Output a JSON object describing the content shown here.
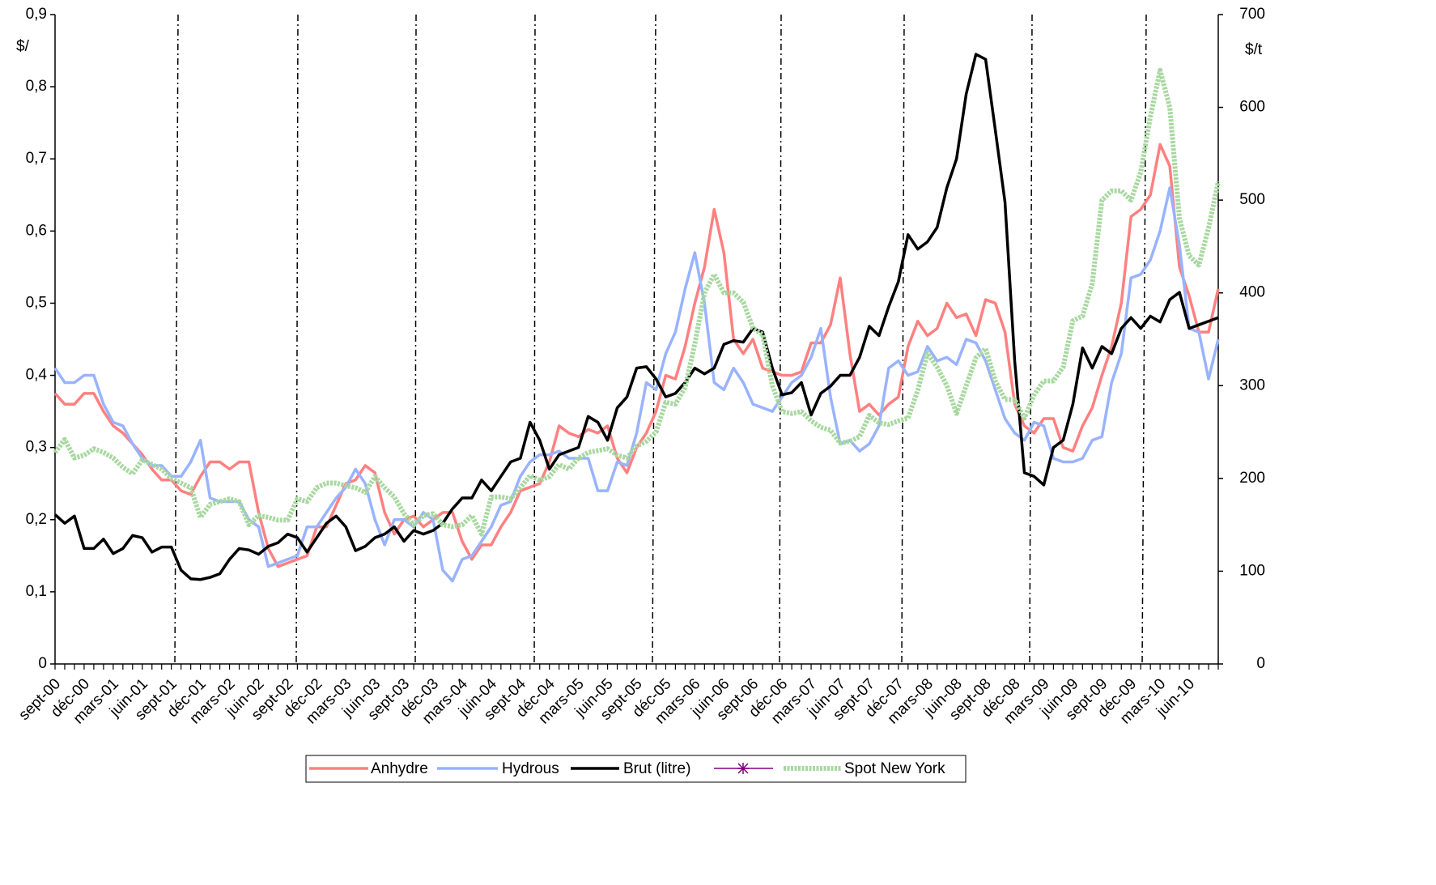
{
  "chart_data": {
    "type": "line",
    "y_label": "$/",
    "y2_label": "$/t",
    "categories": [
      "sept-00",
      null,
      null,
      "déc-00",
      null,
      null,
      "mars-01",
      null,
      null,
      "juin-01",
      null,
      null,
      "sept-01",
      null,
      null,
      "déc-01",
      null,
      null,
      "mars-02",
      null,
      null,
      "juin-02",
      null,
      null,
      "sept-02",
      null,
      null,
      "déc-02",
      null,
      null,
      "mars-03",
      null,
      null,
      "juin-03",
      null,
      null,
      "sept-03",
      null,
      null,
      "déc-03",
      null,
      null,
      "mars-04",
      null,
      null,
      "juin-04",
      null,
      null,
      "sept-04",
      null,
      null,
      "déc-04",
      null,
      null,
      "mars-05",
      null,
      null,
      "juin-05",
      null,
      null,
      "sept-05",
      null,
      null,
      "déc-05",
      null,
      null,
      "mars-06",
      null,
      null,
      "juin-06",
      null,
      null,
      "sept-06",
      null,
      null,
      "déc-06",
      null,
      null,
      "mars-07",
      null,
      null,
      "juin-07",
      null,
      null,
      "sept-07",
      null,
      null,
      "déc-07",
      null,
      null,
      "mars-08",
      null,
      null,
      "juin-08",
      null,
      null,
      "sept-08",
      null,
      null,
      "déc-08",
      null,
      null,
      "mars-09",
      null,
      null,
      "juin-09",
      null,
      null,
      "sept-09",
      null,
      null,
      "déc-09",
      null,
      null,
      "mars-10",
      null,
      null,
      "juin-10",
      null,
      null,
      null
    ],
    "ylim": [
      0,
      0.9
    ],
    "yticks": [
      0,
      {
        "value": 0.1,
        "label": "0,1"
      },
      {
        "value": 0.2,
        "label": "0,2"
      },
      {
        "value": 0.3,
        "label": "0,3"
      },
      {
        "value": 0.4,
        "label": "0,4"
      },
      {
        "value": 0.5,
        "label": "0,5"
      },
      {
        "value": 0.6,
        "label": "0,6"
      },
      {
        "value": 0.7,
        "label": "0,7"
      },
      {
        "value": 0.8,
        "label": "0,8"
      },
      {
        "value": 0.9,
        "label": "0,9"
      }
    ],
    "y2lim": [
      0,
      700
    ],
    "y2ticks": [
      0,
      100,
      200,
      300,
      400,
      500,
      600,
      700
    ],
    "series": [
      {
        "name": "Anhydre",
        "color": "#ff8080",
        "values": [
          0.375,
          0.36,
          0.36,
          0.375,
          0.375,
          0.35,
          0.33,
          0.32,
          0.305,
          0.29,
          0.27,
          0.255,
          0.255,
          0.24,
          0.235,
          0.26,
          0.28,
          0.28,
          0.27,
          0.28,
          0.28,
          0.21,
          0.16,
          0.135,
          0.14,
          0.145,
          0.15,
          0.19,
          0.19,
          0.22,
          0.25,
          0.255,
          0.275,
          0.265,
          0.21,
          0.18,
          0.2,
          0.205,
          0.19,
          0.2,
          0.21,
          0.21,
          0.17,
          0.145,
          0.165,
          0.165,
          0.19,
          0.21,
          0.24,
          0.245,
          0.25,
          0.28,
          0.33,
          0.32,
          0.315,
          0.325,
          0.32,
          0.33,
          0.285,
          0.265,
          0.3,
          0.32,
          0.35,
          0.4,
          0.395,
          0.44,
          0.5,
          0.55,
          0.63,
          0.57,
          0.45,
          0.43,
          0.45,
          0.41,
          0.405,
          0.4,
          0.4,
          0.405,
          0.445,
          0.445,
          0.47,
          0.535,
          0.43,
          0.35,
          0.36,
          0.345,
          0.36,
          0.37,
          0.44,
          0.475,
          0.455,
          0.465,
          0.5,
          0.48,
          0.485,
          0.455,
          0.505,
          0.5,
          0.46,
          0.36,
          0.33,
          0.32,
          0.34,
          0.34,
          0.3,
          0.295,
          0.33,
          0.355,
          0.4,
          0.44,
          0.5,
          0.62,
          0.63,
          0.65,
          0.72,
          0.69,
          0.55,
          0.51,
          0.46,
          0.46,
          0.52
        ]
      },
      {
        "name": "Hydrous",
        "color": "#99b3ff",
        "values": [
          0.41,
          0.39,
          0.39,
          0.4,
          0.4,
          0.36,
          0.335,
          0.33,
          0.305,
          0.285,
          0.275,
          0.275,
          0.26,
          0.26,
          0.28,
          0.31,
          0.23,
          0.225,
          0.225,
          0.225,
          0.2,
          0.19,
          0.135,
          0.14,
          0.145,
          0.15,
          0.19,
          0.19,
          0.21,
          0.23,
          0.245,
          0.27,
          0.25,
          0.2,
          0.165,
          0.2,
          0.2,
          0.19,
          0.21,
          0.2,
          0.13,
          0.115,
          0.145,
          0.15,
          0.17,
          0.19,
          0.22,
          0.225,
          0.26,
          0.28,
          0.29,
          0.29,
          0.295,
          0.285,
          0.285,
          0.285,
          0.24,
          0.24,
          0.28,
          0.275,
          0.32,
          0.39,
          0.38,
          0.43,
          0.46,
          0.52,
          0.57,
          0.5,
          0.39,
          0.38,
          0.41,
          0.39,
          0.36,
          0.355,
          0.35,
          0.37,
          0.39,
          0.4,
          0.425,
          0.465,
          0.37,
          0.305,
          0.31,
          0.295,
          0.305,
          0.33,
          0.41,
          0.42,
          0.4,
          0.405,
          0.44,
          0.42,
          0.425,
          0.415,
          0.45,
          0.445,
          0.42,
          0.38,
          0.34,
          0.32,
          0.31,
          0.335,
          0.33,
          0.285,
          0.28,
          0.28,
          0.285,
          0.31,
          0.315,
          0.39,
          0.43,
          0.535,
          0.54,
          0.56,
          0.6,
          0.66,
          0.58,
          0.465,
          0.46,
          0.395,
          0.45
        ]
      },
      {
        "name": "Brut (litre)",
        "color": "#000000",
        "values": [
          0.207,
          0.195,
          0.205,
          0.16,
          0.16,
          0.173,
          0.153,
          0.16,
          0.178,
          0.175,
          0.155,
          0.162,
          0.162,
          0.13,
          0.118,
          0.117,
          0.12,
          0.125,
          0.145,
          0.16,
          0.158,
          0.152,
          0.163,
          0.168,
          0.18,
          0.175,
          0.155,
          0.175,
          0.195,
          0.205,
          0.19,
          0.157,
          0.163,
          0.175,
          0.18,
          0.19,
          0.17,
          0.185,
          0.18,
          0.185,
          0.195,
          0.215,
          0.23,
          0.23,
          0.255,
          0.24,
          0.26,
          0.28,
          0.285,
          0.335,
          0.31,
          0.27,
          0.29,
          0.295,
          0.3,
          0.343,
          0.335,
          0.31,
          0.355,
          0.37,
          0.41,
          0.412,
          0.395,
          0.37,
          0.375,
          0.39,
          0.41,
          0.402,
          0.41,
          0.443,
          0.448,
          0.446,
          0.465,
          0.46,
          0.41,
          0.373,
          0.376,
          0.39,
          0.345,
          0.375,
          0.385,
          0.4,
          0.4,
          0.425,
          0.468,
          0.455,
          0.495,
          0.53,
          0.595,
          0.575,
          0.585,
          0.605,
          0.66,
          0.7,
          0.79,
          0.845,
          0.838,
          0.74,
          0.64,
          0.42,
          0.265,
          0.26,
          0.248,
          0.3,
          0.31,
          0.36,
          0.438,
          0.41,
          0.44,
          0.43,
          0.465,
          0.48,
          0.465,
          0.482,
          0.474,
          0.505,
          0.515,
          0.465,
          0.47,
          0.475,
          0.48
        ]
      },
      {
        "name": "Spot New York",
        "color": "#a8d8a0",
        "axis": "y2",
        "values": [
          228,
          242,
          222,
          225,
          232,
          228,
          222,
          212,
          205,
          220,
          215,
          210,
          200,
          195,
          190,
          158,
          172,
          175,
          178,
          175,
          150,
          160,
          158,
          155,
          155,
          178,
          175,
          190,
          195,
          195,
          192,
          190,
          185,
          202,
          190,
          180,
          162,
          150,
          160,
          162,
          150,
          148,
          150,
          160,
          140,
          180,
          180,
          178,
          190,
          203,
          198,
          202,
          215,
          210,
          222,
          228,
          230,
          232,
          225,
          222,
          235,
          240,
          250,
          282,
          280,
          298,
          345,
          400,
          420,
          400,
          400,
          390,
          362,
          355,
          300,
          272,
          270,
          272,
          262,
          255,
          252,
          238,
          240,
          245,
          268,
          260,
          258,
          262,
          265,
          295,
          335,
          320,
          300,
          270,
          300,
          330,
          340,
          305,
          285,
          285,
          265,
          290,
          305,
          305,
          320,
          370,
          375,
          410,
          500,
          510,
          510,
          500,
          530,
          590,
          640,
          600,
          480,
          440,
          430,
          470,
          520
        ]
      }
    ]
  }
}
